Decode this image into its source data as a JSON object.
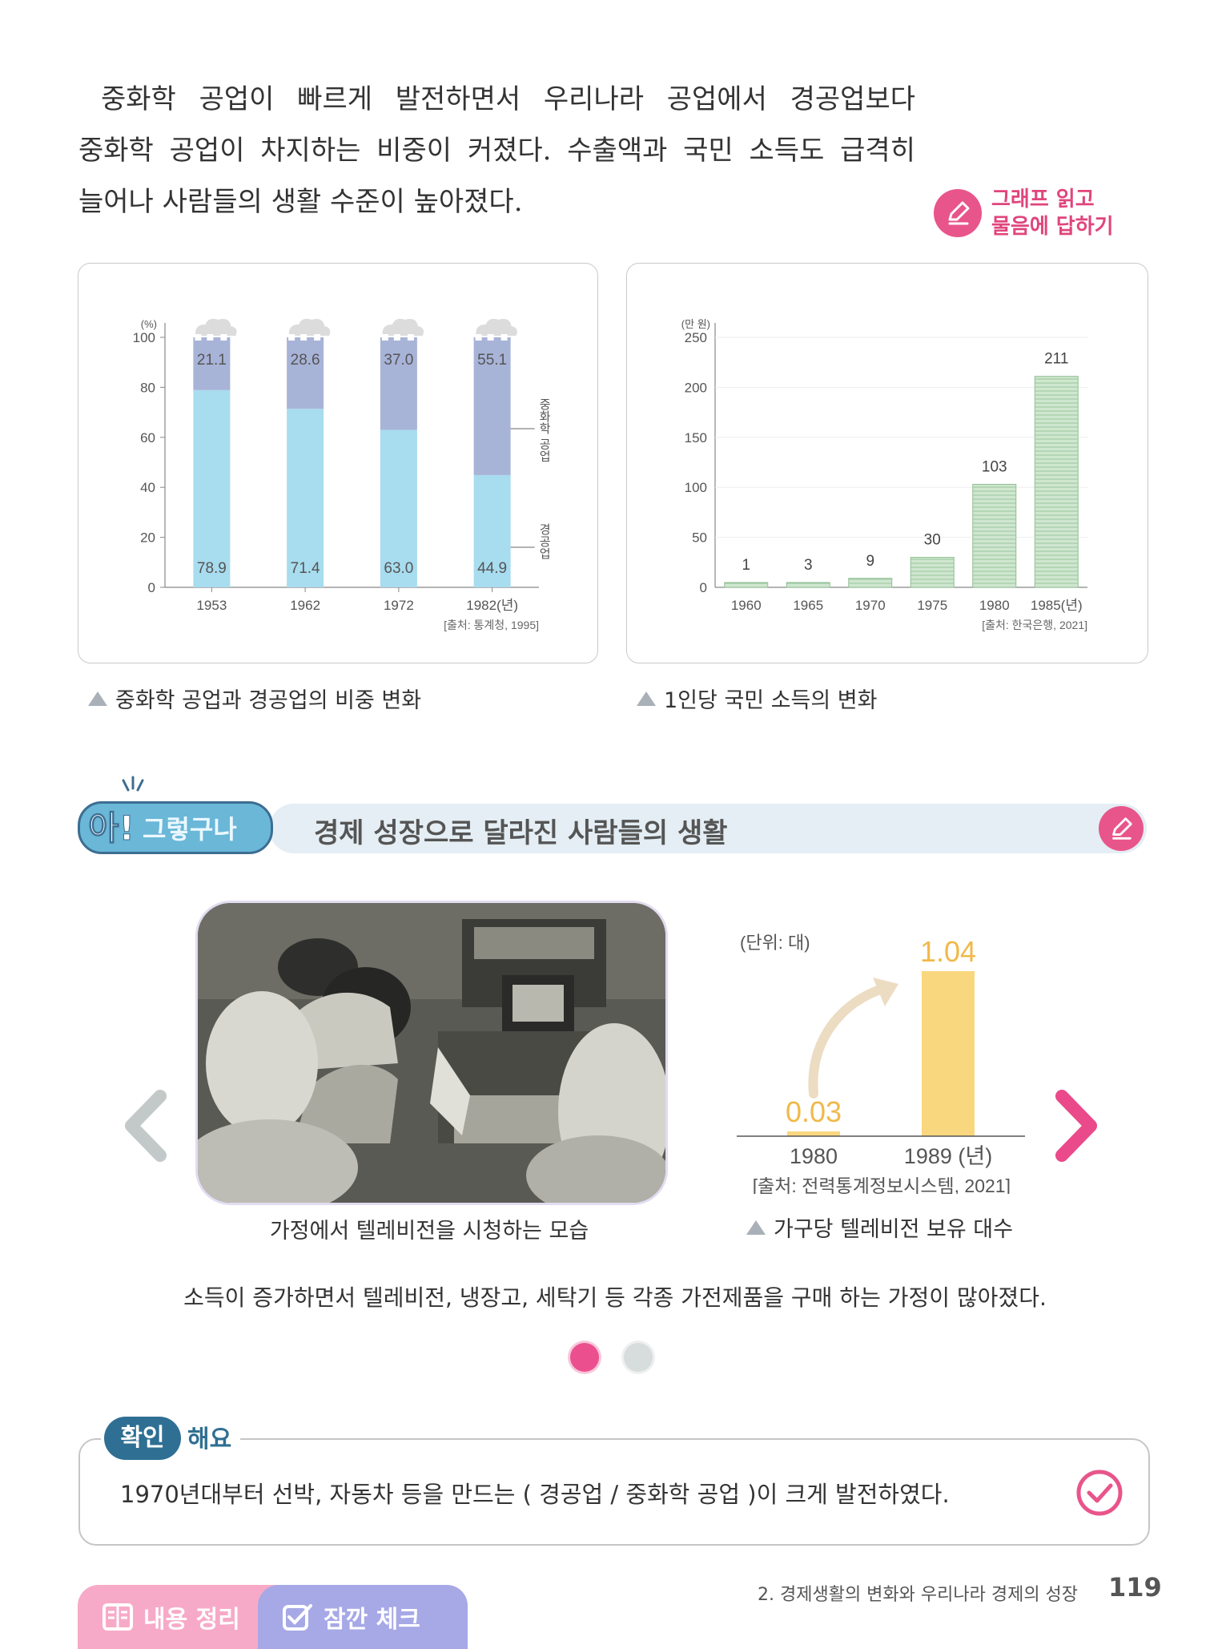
{
  "intro": {
    "lines": [
      "중화학 공업이 빠르게 발전하면서 우리나라 공업에서 경공업보다",
      "중화학 공업이 차지하는 비중이 커졌다. 수출액과 국민 소득도 급격히",
      "늘어나 사람들의 생활 수준이 높아졌다."
    ]
  },
  "graph_tip": {
    "line1": "그래프 읽고",
    "line2": "물음에 답하기"
  },
  "chart_data": [
    {
      "type": "bar",
      "stacked": true,
      "categories": [
        "1953",
        "1962",
        "1972",
        "1982"
      ],
      "series": [
        {
          "name": "경공업",
          "values": [
            78.9,
            71.4,
            63.0,
            44.9
          ],
          "labels": [
            "78.9",
            "71.4",
            "63.0",
            "44.9"
          ],
          "color": "#a8dcef"
        },
        {
          "name": "중화학 공업",
          "values": [
            21.1,
            28.6,
            37.0,
            55.1
          ],
          "labels": [
            "21.1",
            "28.6",
            "37.0",
            "55.1"
          ],
          "color": "#a8b3d8"
        }
      ],
      "yunit": "(%)",
      "xunit": "(년)",
      "ylim": [
        0,
        100
      ],
      "yticks": [
        "0",
        "20",
        "40",
        "60",
        "80",
        "100"
      ],
      "source": "[출처: 통계청, 1995]",
      "caption": "중화학 공업과 경공업의 비중 변화"
    },
    {
      "type": "bar",
      "categories": [
        "1960",
        "1965",
        "1970",
        "1975",
        "1980",
        "1985"
      ],
      "values": [
        1,
        3,
        9,
        30,
        103,
        211
      ],
      "labels": [
        "1",
        "3",
        "9",
        "30",
        "103",
        "211"
      ],
      "yunit": "(만 원)",
      "xunit": "(년)",
      "ylim": [
        0,
        250
      ],
      "yticks": [
        "0",
        "50",
        "100",
        "150",
        "200",
        "250"
      ],
      "grid": true,
      "source": "[출처: 한국은행, 2021]",
      "caption": "1인당 국민 소득의 변화"
    },
    {
      "type": "bar",
      "categories": [
        "1980",
        "1989"
      ],
      "values": [
        0.03,
        1.04
      ],
      "labels": [
        "0.03",
        "1.04"
      ],
      "unit": "(단위: 대)",
      "xunit": "(년)",
      "ylim": [
        0,
        1.04
      ],
      "color": "#f9d77e",
      "source": "[출처: 전력통계정보시스템, 2021]",
      "caption": "가구당 텔레비전 보유 대수"
    }
  ],
  "banner": {
    "badge_a": "아!",
    "badge_b": "그렇구나",
    "title": "경제 성장으로 달라진 사람들의 생활"
  },
  "photo_caption": "가정에서 텔레비전을 시청하는 모습",
  "summary": "소득이 증가하면서 텔레비전, 냉장고, 세탁기 등 각종 가전제품을 구매 하는 가정이 많아졌다.",
  "check": {
    "tab_a": "확인",
    "tab_b": "해요",
    "question": "1970년대부터 선박, 자동차 등을 만드는 ( 경공업 / 중화학 공업 )이 크게 발전하였다."
  },
  "footer": {
    "chapter": "2. 경제생활의 변화와 우리나라 경제의 성장",
    "page": "119",
    "tab1": "내용 정리",
    "tab2": "잠깐 체크"
  },
  "colors": {
    "accent_pink": "#e8558a",
    "light_bar": "#a8dcef",
    "heavy_bar": "#a8b3d8",
    "tv_bar": "#f9d77e",
    "banner_teal": "#6ab7d8"
  }
}
